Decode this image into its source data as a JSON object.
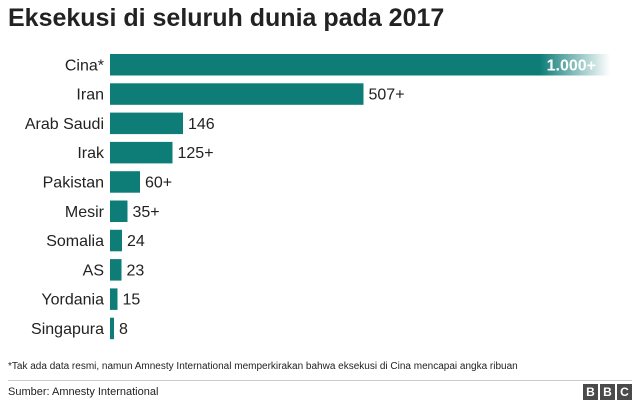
{
  "chart_data": {
    "type": "bar",
    "orientation": "horizontal",
    "title": "Eksekusi di seluruh dunia pada 2017",
    "categories": [
      "Cina*",
      "Iran",
      "Arab Saudi",
      "Irak",
      "Pakistan",
      "Mesir",
      "Somalia",
      "AS",
      "Yordania",
      "Singapura"
    ],
    "values": [
      1000,
      507,
      146,
      125,
      60,
      35,
      24,
      23,
      15,
      8
    ],
    "value_labels": [
      "1.000+",
      "507+",
      "146",
      "125+",
      "60+",
      "35+",
      "24",
      "23",
      "15",
      "8"
    ],
    "bar_color": "#0e7d78",
    "first_bar_fades_out": true,
    "xlim": [
      0,
      1000
    ]
  },
  "footnote": "*Tak ada data resmi, namun Amnesty International memperkirakan bahwa eksekusi di Cina mencapai angka ribuan",
  "source": "Sumber: Amnesty International",
  "logo": [
    "B",
    "B",
    "C"
  ]
}
